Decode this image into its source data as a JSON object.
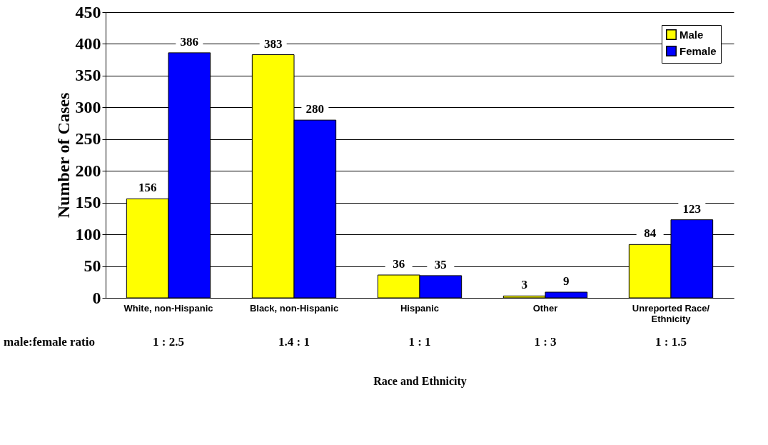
{
  "chart_data": {
    "type": "bar",
    "xlabel": "Race and Ethnicity",
    "ylabel": "Number of Cases",
    "categories": [
      "White, non-Hispanic",
      "Black, non-Hispanic",
      "Hispanic",
      "Other",
      "Unreported Race/ Ethnicity"
    ],
    "series": [
      {
        "name": "Male",
        "color": "#ffff00",
        "values": [
          156,
          383,
          36,
          3,
          84
        ]
      },
      {
        "name": "Female",
        "color": "#0000ff",
        "values": [
          386,
          280,
          35,
          9,
          123
        ]
      }
    ],
    "ylim": [
      0,
      450
    ],
    "yticks": [
      0,
      50,
      100,
      150,
      200,
      250,
      300,
      350,
      400,
      450
    ],
    "grid": "y",
    "legend": "top right",
    "data_labels": true,
    "annotations": [
      "male:female ratio",
      "1 : 2.5",
      "1.4 : 1",
      "1 : 1",
      "1 : 3",
      "1 : 1.5"
    ]
  }
}
